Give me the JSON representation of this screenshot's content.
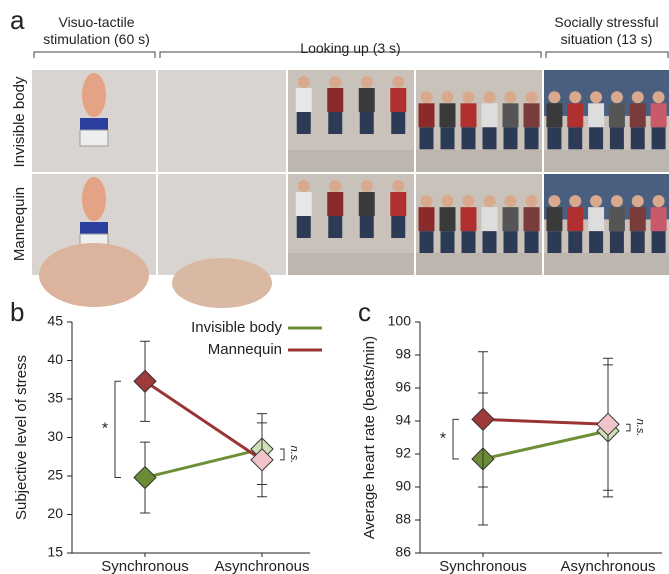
{
  "panel_a": {
    "label": "a",
    "headers": [
      "Visuo-tactile stimulation (60 s)",
      "Looking up (3 s)",
      "Socially stressful situation (13 s)"
    ],
    "rows": [
      "Invisible body",
      "Mannequin"
    ]
  },
  "chart_data": [
    {
      "type": "line",
      "panel_label": "b",
      "y_label": "Subjective level of stress",
      "categories": [
        "Synchronous",
        "Asynchronous"
      ],
      "series": [
        {
          "name": "Invisible body",
          "color": "#6f8f37",
          "marker_colors": [
            "#6b8c35",
            "#cfe0b4"
          ],
          "values": [
            24.8,
            28.5
          ],
          "errors": [
            4.6,
            4.6
          ]
        },
        {
          "name": "Mannequin",
          "color": "#9b3535",
          "marker_colors": [
            "#9e3a3a",
            "#f0c4c8"
          ],
          "values": [
            37.3,
            27.1
          ],
          "errors": [
            5.2,
            4.8
          ]
        }
      ],
      "ylim": [
        15,
        45
      ],
      "yticks": [
        15,
        20,
        25,
        30,
        35,
        40,
        45
      ],
      "legend": "upper right",
      "annotations": [
        "*",
        "n.s."
      ]
    },
    {
      "type": "line",
      "panel_label": "c",
      "y_label": "Average heart rate (beats/min)",
      "categories": [
        "Synchronous",
        "Asynchronous"
      ],
      "series": [
        {
          "color": "#6f8f37",
          "marker_colors": [
            "#6b8c35",
            "#cfe0b4"
          ],
          "values": [
            91.7,
            93.4
          ],
          "errors": [
            4.0,
            4.0
          ]
        },
        {
          "color": "#9b3535",
          "marker_colors": [
            "#9e3a3a",
            "#f0c4c8"
          ],
          "values": [
            94.1,
            93.8
          ],
          "errors": [
            4.1,
            4.0
          ]
        }
      ],
      "ylim": [
        86,
        100
      ],
      "yticks": [
        86,
        88,
        90,
        92,
        94,
        96,
        98,
        100
      ],
      "annotations": [
        "*",
        "n.s."
      ]
    }
  ]
}
